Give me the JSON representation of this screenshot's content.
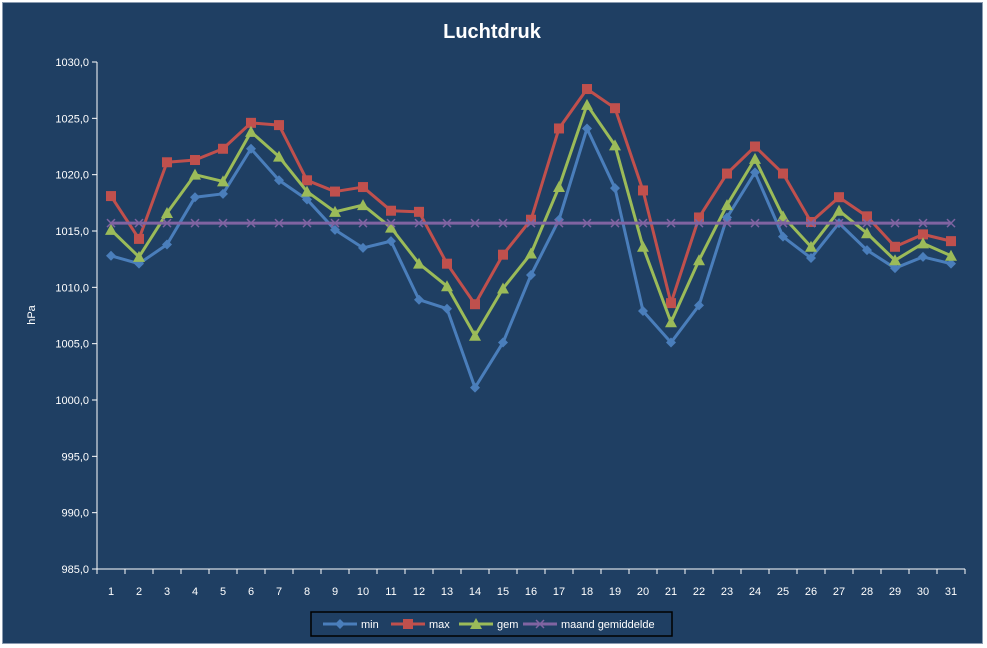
{
  "chart_data": {
    "type": "line",
    "title": "Luchtdruk",
    "xlabel": "",
    "ylabel": "hPa",
    "categories": [
      "1",
      "2",
      "3",
      "4",
      "5",
      "6",
      "7",
      "8",
      "9",
      "10",
      "11",
      "12",
      "13",
      "14",
      "15",
      "16",
      "17",
      "18",
      "19",
      "20",
      "21",
      "22",
      "23",
      "24",
      "25",
      "26",
      "27",
      "28",
      "29",
      "30",
      "31"
    ],
    "ylim": [
      985,
      1030
    ],
    "yticks": [
      "985,0",
      "990,0",
      "995,0",
      "1000,0",
      "1005,0",
      "1010,0",
      "1015,0",
      "1020,0",
      "1025,0",
      "1030,0"
    ],
    "grid": false,
    "legend_position": "bottom",
    "series": [
      {
        "name": "min",
        "color": "#4a7ebb",
        "marker": "diamond",
        "values": [
          1012.8,
          1012.1,
          1013.8,
          1018.0,
          1018.3,
          1022.3,
          1019.5,
          1017.8,
          1015.1,
          1013.5,
          1014.1,
          1008.9,
          1008.1,
          1001.1,
          1005.1,
          1011.1,
          1016.0,
          1024.1,
          1018.8,
          1007.9,
          1005.1,
          1008.4,
          1016.2,
          1020.2,
          1014.5,
          1012.6,
          1015.7,
          1013.3,
          1011.7,
          1012.7,
          1012.1
        ]
      },
      {
        "name": "max",
        "color": "#c0504d",
        "marker": "square",
        "values": [
          1018.1,
          1014.3,
          1021.1,
          1021.3,
          1022.3,
          1024.6,
          1024.4,
          1019.5,
          1018.5,
          1018.9,
          1016.8,
          1016.7,
          1012.1,
          1008.5,
          1012.9,
          1016.0,
          1024.1,
          1027.6,
          1025.9,
          1018.6,
          1008.6,
          1016.2,
          1020.1,
          1022.5,
          1020.1,
          1015.8,
          1018.0,
          1016.3,
          1013.6,
          1014.7,
          1014.1
        ]
      },
      {
        "name": "gem",
        "color": "#9bbb59",
        "marker": "triangle",
        "values": [
          1015.1,
          1012.7,
          1016.6,
          1020.0,
          1019.4,
          1023.8,
          1021.6,
          1018.5,
          1016.7,
          1017.3,
          1015.3,
          1012.1,
          1010.1,
          1005.7,
          1009.9,
          1013.0,
          1018.9,
          1026.2,
          1022.6,
          1013.6,
          1006.9,
          1012.4,
          1017.3,
          1021.4,
          1016.3,
          1013.6,
          1016.8,
          1014.8,
          1012.4,
          1013.9,
          1012.8
        ]
      },
      {
        "name": "maand gemiddelde",
        "color": "#8064a2",
        "marker": "x",
        "values": [
          1015.7,
          1015.7,
          1015.7,
          1015.7,
          1015.7,
          1015.7,
          1015.7,
          1015.7,
          1015.7,
          1015.7,
          1015.7,
          1015.7,
          1015.7,
          1015.7,
          1015.7,
          1015.7,
          1015.7,
          1015.7,
          1015.7,
          1015.7,
          1015.7,
          1015.7,
          1015.7,
          1015.7,
          1015.7,
          1015.7,
          1015.7,
          1015.7,
          1015.7,
          1015.7,
          1015.7
        ]
      }
    ]
  }
}
